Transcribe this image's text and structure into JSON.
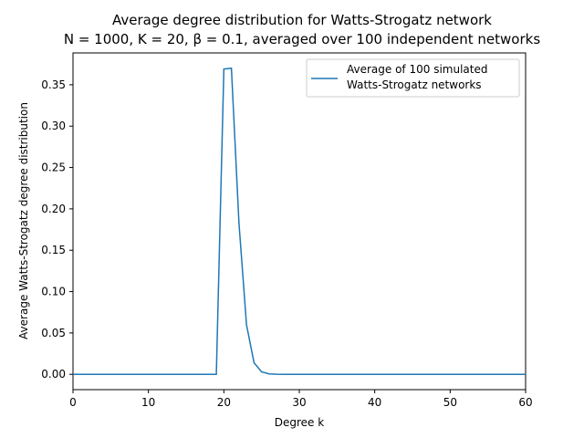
{
  "chart_data": {
    "type": "line",
    "title_line1": "Average degree distribution for Watts-Strogatz network",
    "title_line2": "N = 1000, K = 20, β = 0.1, averaged over 100 independent networks",
    "xlabel": "Degree k",
    "ylabel": "Average Watts-Strogatz degree distribution",
    "xlim": [
      0,
      60
    ],
    "ylim": [
      -0.0185,
      0.3885
    ],
    "xticks": [
      0,
      10,
      20,
      30,
      40,
      50,
      60
    ],
    "xtick_labels": [
      "0",
      "10",
      "20",
      "30",
      "40",
      "50",
      "60"
    ],
    "yticks": [
      0.0,
      0.05,
      0.1,
      0.15,
      0.2,
      0.25,
      0.3,
      0.35
    ],
    "ytick_labels": [
      "0.00",
      "0.05",
      "0.10",
      "0.15",
      "0.20",
      "0.25",
      "0.30",
      "0.35"
    ],
    "grid": false,
    "legend_position": "top-right",
    "series": [
      {
        "name": "Average of 100 simulated\nWatts-Strogatz networks",
        "legend_line1": "Average of 100 simulated",
        "legend_line2": "Watts-Strogatz networks",
        "color": "#1f77b4",
        "x": [
          0,
          1,
          2,
          3,
          4,
          5,
          6,
          7,
          8,
          9,
          10,
          11,
          12,
          13,
          14,
          15,
          16,
          17,
          18,
          19,
          20,
          21,
          22,
          23,
          24,
          25,
          26,
          27,
          28,
          29,
          30,
          31,
          32,
          33,
          34,
          35,
          36,
          37,
          38,
          39,
          40,
          41,
          42,
          43,
          44,
          45,
          46,
          47,
          48,
          49,
          50,
          51,
          52,
          53,
          54,
          55,
          56,
          57,
          58,
          59,
          60
        ],
        "y": [
          0,
          0,
          0,
          0,
          0,
          0,
          0,
          0,
          0,
          0,
          0,
          0,
          0,
          0,
          0,
          0,
          0,
          0,
          0,
          0,
          0.369,
          0.37,
          0.183,
          0.06,
          0.014,
          0.003,
          0.0005,
          0.0001,
          0,
          0,
          0,
          0,
          0,
          0,
          0,
          0,
          0,
          0,
          0,
          0,
          0,
          0,
          0,
          0,
          0,
          0,
          0,
          0,
          0,
          0,
          0,
          0,
          0,
          0,
          0,
          0,
          0,
          0,
          0,
          0,
          0
        ]
      }
    ]
  }
}
